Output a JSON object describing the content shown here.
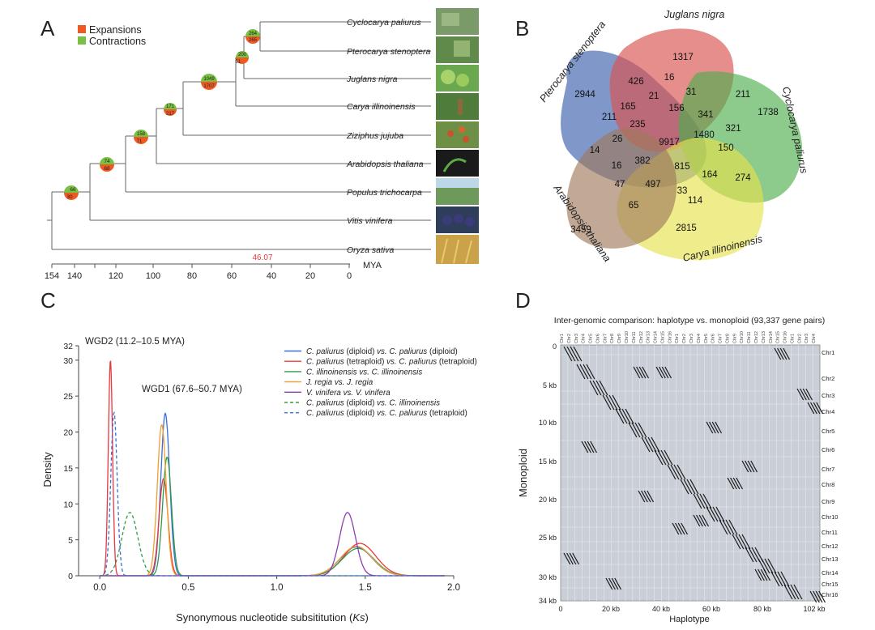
{
  "panels": {
    "A": {
      "label": "A",
      "legend": {
        "expansions": "Expansions",
        "contractions": "Contractions",
        "expansion_color": "#ef5a24",
        "contraction_color": "#7ac143"
      },
      "species": [
        "Cyclocarya paliurus",
        "Pterocarya stenoptera",
        "Juglans nigra",
        "Carya illinoinensis",
        "Ziziphus jujuba",
        "Arabidopsis thaliana",
        "Populus trichocarpa",
        "Vitis vinifera",
        "Oryza sativa"
      ],
      "nodes": [
        {
          "contraction": "264",
          "expansion": "265"
        },
        {
          "contraction": "200",
          "expansion": "51"
        },
        {
          "contraction": "1049",
          "expansion": "1707"
        },
        {
          "contraction": "171",
          "expansion": "217"
        },
        {
          "contraction": "158",
          "expansion": "71"
        },
        {
          "contraction": "74",
          "expansion": "68"
        },
        {
          "contraction": "66",
          "expansion": "30"
        }
      ],
      "axis_ticks": [
        "154",
        "140",
        "120",
        "100",
        "80",
        "60",
        "40",
        "20",
        "0"
      ],
      "axis_unit": "MYA",
      "annotation": "46.07"
    },
    "B": {
      "label": "B",
      "sets": [
        "Pterocarya stenoptera",
        "Juglans nigra",
        "Cyclocarya paliurus",
        "Carya illinoinensis",
        "Arabidopsis thaliana"
      ],
      "set_colors": [
        "#4f6fb5",
        "#d9534f",
        "#4cae4c",
        "#e6e24a",
        "#a0785a"
      ],
      "counts": [
        "1317",
        "2944",
        "1738",
        "3459",
        "2815",
        "426",
        "16",
        "211",
        "31",
        "211",
        "21",
        "165",
        "156",
        "341",
        "321",
        "235",
        "9917",
        "1480",
        "26",
        "150",
        "382",
        "815",
        "14",
        "16",
        "164",
        "274",
        "47",
        "497",
        "33",
        "114",
        "65"
      ]
    },
    "C": {
      "label": "C",
      "annotation_wgd2": "WGD2 (11.2–10.5 MYA)",
      "annotation_wgd1": "WGD1 (67.6–50.7 MYA)",
      "legend": [
        {
          "a": "C. paliurus",
          "mid": " (diploid) ",
          "vs": "vs.",
          "b": " C. paliurus",
          "tail": " (diploid)",
          "color": "#3a6fd8",
          "dash": false
        },
        {
          "a": "C. paliurus",
          "mid": " (tetraploid) ",
          "vs": "vs.",
          "b": " C. paliurus",
          "tail": " (tetraploid)",
          "color": "#e8383d",
          "dash": false
        },
        {
          "a": "C. illinoinensis",
          "mid": " ",
          "vs": "vs.",
          "b": " C. illinoinensis",
          "tail": "",
          "color": "#2f9b4a",
          "dash": false
        },
        {
          "a": "J. regia",
          "mid": " ",
          "vs": "vs.",
          "b": " J. regia",
          "tail": "",
          "color": "#f0a030",
          "dash": false
        },
        {
          "a": "V. vinifera",
          "mid": " ",
          "vs": "vs.",
          "b": " V. vinifera",
          "tail": "",
          "color": "#8e3fb0",
          "dash": false
        },
        {
          "a": "C. paliurus",
          "mid": " (diploid) ",
          "vs": "vs.",
          "b": " C. illinoinensis",
          "tail": "",
          "color": "#2f9b4a",
          "dash": true
        },
        {
          "a": "C. paliurus",
          "mid": " (diploid) ",
          "vs": "vs.",
          "b": " C. paliurus",
          "tail": " (tetraploid)",
          "color": "#3a6fd8",
          "dash": true
        }
      ]
    },
    "D": {
      "label": "D",
      "title": "Inter-genomic comparison: haplotype vs. monoploid (93,337 gene pairs)",
      "xlabel": "Haplotype",
      "ylabel": "Monoploid",
      "x_ticks": [
        "0",
        "20 kb",
        "40 kb",
        "60 kb",
        "80 kb",
        "102 kb"
      ],
      "y_ticks": [
        "0",
        "5 kb",
        "10 kb",
        "15 kb",
        "20 kb",
        "25 kb",
        "30 kb",
        "34 kb"
      ],
      "chromosomes": [
        "Chr1",
        "Chr2",
        "Chr3",
        "Chr4",
        "Chr5",
        "Chr6",
        "Chr7",
        "Chr8",
        "Chr9",
        "Chr10",
        "Chr11",
        "Chr12",
        "Chr13",
        "Chr14",
        "Chr15",
        "Chr16"
      ]
    }
  },
  "chart_data": {
    "type": "line",
    "title": "",
    "xlabel": "Synonymous nucleotide subsititution (Ks)",
    "ylabel": "Density",
    "xlim": [
      -0.12,
      2.0
    ],
    "ylim": [
      0,
      32
    ],
    "x_ticks": [
      "0.0",
      "0.5",
      "1.0",
      "1.5",
      "2.0"
    ],
    "y_ticks": [
      "0",
      "5",
      "10",
      "15",
      "20",
      "25",
      "30",
      "32"
    ],
    "series": [
      {
        "name": "C. paliurus (diploid) vs. C. paliurus (diploid)",
        "color": "#3a6fd8",
        "dash": false,
        "peaks": [
          {
            "mu": 0.37,
            "sd": 0.025,
            "h": 22.6
          },
          {
            "mu": 1.45,
            "sd": 0.09,
            "h": 4.0
          }
        ]
      },
      {
        "name": "C. paliurus (tetraploid) vs. C. paliurus (tetraploid)",
        "color": "#e8383d",
        "dash": false,
        "peaks": [
          {
            "mu": 0.06,
            "sd": 0.012,
            "h": 30
          },
          {
            "mu": 0.36,
            "sd": 0.025,
            "h": 13.5
          },
          {
            "mu": 1.47,
            "sd": 0.09,
            "h": 4.5
          }
        ]
      },
      {
        "name": "C. illinoinensis vs. C. illinoinensis",
        "color": "#2f9b4a",
        "dash": false,
        "peaks": [
          {
            "mu": 0.38,
            "sd": 0.025,
            "h": 16.5
          },
          {
            "mu": 1.46,
            "sd": 0.09,
            "h": 3.8
          }
        ]
      },
      {
        "name": "J. regia vs. J. regia",
        "color": "#f0a030",
        "dash": false,
        "peaks": [
          {
            "mu": 0.35,
            "sd": 0.025,
            "h": 21
          },
          {
            "mu": 1.45,
            "sd": 0.09,
            "h": 4.1
          }
        ]
      },
      {
        "name": "V. vinifera vs. V. vinifera",
        "color": "#8e3fb0",
        "dash": false,
        "peaks": [
          {
            "mu": 1.4,
            "sd": 0.045,
            "h": 8.8
          }
        ]
      },
      {
        "name": "C. paliurus (diploid) vs. C. illinoinensis",
        "color": "#2f9b4a",
        "dash": true,
        "peaks": [
          {
            "mu": 0.17,
            "sd": 0.045,
            "h": 8.8
          }
        ]
      },
      {
        "name": "C. paliurus (diploid) vs. C. paliurus (tetraploid)",
        "color": "#3a6fd8",
        "dash": true,
        "peaks": [
          {
            "mu": 0.08,
            "sd": 0.018,
            "h": 22.7
          }
        ]
      }
    ]
  }
}
